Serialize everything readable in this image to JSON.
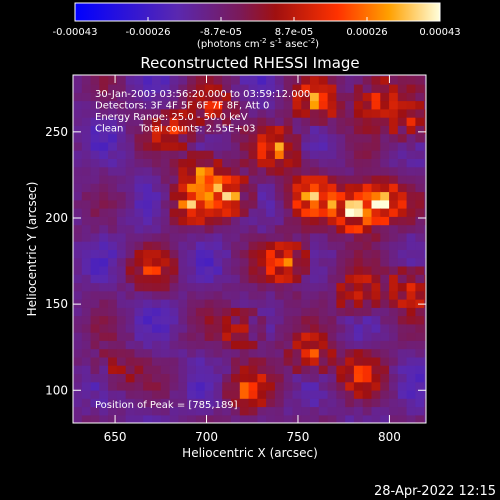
{
  "chart_data": {
    "type": "heatmap",
    "title": "Reconstructed RHESSI Image",
    "xlabel": "Heliocentric X (arcsec)",
    "ylabel": "Heliocentric Y (arcsec)",
    "xlim": [
      627,
      820
    ],
    "ylim": [
      81,
      283
    ],
    "x_ticks": [
      650,
      700,
      750,
      800
    ],
    "y_ticks": [
      100,
      150,
      200,
      250
    ],
    "colorbar": {
      "ticks": [
        "-0.00043",
        "-0.00026",
        "-8.7e-05",
        "8.7e-05",
        "0.00026",
        "0.00043"
      ],
      "range": [
        -0.00043,
        0.00043
      ],
      "unit_text": "(photons cm",
      "unit_sup1": "-2",
      "unit_mid": " s",
      "unit_sup2": "-1",
      "unit_mid2": " asec",
      "unit_sup3": "-2",
      "unit_end": ")"
    },
    "annotations": [
      "30-Jan-2003 03:56:20.000 to 03:59:12.000",
      "Detectors: 3F 4F 5F 6F 7F 8F, Att 0",
      "Energy Range: 25.0 - 50.0 keV",
      "Clean     Total counts: 2.55E+03"
    ],
    "peak_label": "Position of Peak = [785,189]",
    "peak": [
      785,
      189
    ],
    "peak_value": 0.00043,
    "background_value": -0.00012,
    "sources": [
      {
        "x": 780,
        "y": 205,
        "value": 0.00043
      },
      {
        "x": 795,
        "y": 210,
        "value": 0.00038
      },
      {
        "x": 758,
        "y": 213,
        "value": 0.0003
      },
      {
        "x": 744,
        "y": 175,
        "value": 0.00032
      },
      {
        "x": 714,
        "y": 213,
        "value": 0.00028
      },
      {
        "x": 698,
        "y": 226,
        "value": 0.00024
      },
      {
        "x": 690,
        "y": 208,
        "value": 0.00022
      },
      {
        "x": 740,
        "y": 240,
        "value": 0.00026
      },
      {
        "x": 760,
        "y": 268,
        "value": 0.00024
      },
      {
        "x": 792,
        "y": 270,
        "value": 0.00026
      },
      {
        "x": 812,
        "y": 255,
        "value": 0.0002
      },
      {
        "x": 812,
        "y": 160,
        "value": 0.00022
      },
      {
        "x": 783,
        "y": 155,
        "value": 0.00018
      },
      {
        "x": 757,
        "y": 120,
        "value": 0.0002
      },
      {
        "x": 785,
        "y": 110,
        "value": 0.00016
      },
      {
        "x": 720,
        "y": 136,
        "value": 0.00018
      },
      {
        "x": 722,
        "y": 100,
        "value": 0.00016
      },
      {
        "x": 670,
        "y": 170,
        "value": 0.00012
      },
      {
        "x": 650,
        "y": 113,
        "value": 0.0001
      },
      {
        "x": 683,
        "y": 252,
        "value": 0.00016
      },
      {
        "x": 704,
        "y": 264,
        "value": 0.00014
      }
    ]
  },
  "footer": {
    "timestamp": "28-Apr-2022 12:15"
  }
}
